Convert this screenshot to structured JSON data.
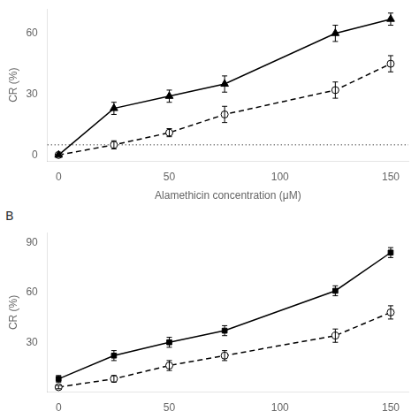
{
  "chart_data": [
    {
      "type": "line",
      "x_label": "Alamethicin concentration (μM)",
      "y_label": "CR (%)",
      "x": [
        0,
        25,
        50,
        75,
        125,
        150
      ],
      "series": [
        {
          "color": "black",
          "marker": "triangle_filled",
          "line_style": "solid",
          "values": [
            0,
            23,
            29,
            35,
            60,
            67
          ],
          "yerr": [
            0,
            3,
            3,
            4,
            4,
            3
          ]
        },
        {
          "color": "black",
          "marker": "circle_open",
          "line_style": "dashed",
          "values": [
            0,
            5,
            11,
            20,
            32,
            45
          ],
          "yerr": [
            0,
            2,
            2,
            4,
            4,
            4
          ]
        }
      ],
      "reference_lines": [
        {
          "y": 5,
          "line_style": "dotted",
          "color": "black"
        }
      ],
      "xlim": [
        -5,
        158
      ],
      "xticks": [
        0,
        50,
        100,
        150
      ],
      "ylim": [
        -3,
        72
      ],
      "yticks": [
        0,
        30,
        60
      ],
      "grid": false
    },
    {
      "type": "line",
      "panel_label": "B",
      "y_label": "CR (%)",
      "x": [
        0,
        25,
        50,
        75,
        125,
        150
      ],
      "series": [
        {
          "color": "black",
          "marker": "square_filled",
          "line_style": "solid",
          "values": [
            8,
            22,
            30,
            37,
            61,
            84
          ],
          "yerr": [
            2,
            3,
            3,
            3,
            3,
            3
          ]
        },
        {
          "color": "black",
          "marker": "circle_open",
          "line_style": "dashed",
          "values": [
            3,
            8,
            16,
            22,
            34,
            48
          ],
          "yerr": [
            1,
            2,
            3,
            3,
            4,
            4
          ]
        }
      ],
      "xlim": [
        -5,
        158
      ],
      "xticks": [
        0,
        50,
        100,
        150
      ],
      "ylim": [
        0,
        96
      ],
      "yticks": [
        30,
        60,
        90
      ],
      "grid": false
    }
  ]
}
